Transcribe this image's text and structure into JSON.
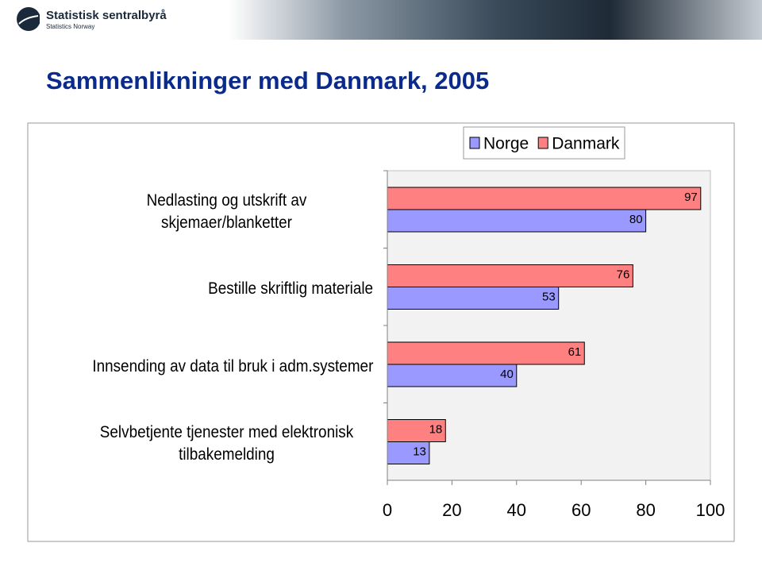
{
  "header": {
    "logo": "Statistisk sentralbyrå",
    "logo_sub": "Statistics Norway"
  },
  "chart_data": {
    "type": "hbar",
    "title": "Sammenlikninger med Danmark, 2005",
    "categories": [
      "Nedlasting og utskrift av skjemaer/blanketter",
      "Bestille skriftlig materiale",
      "Innsending av data til bruk i adm.systemer",
      "Selvbetjente tjenester med elektronisk tilbakemelding"
    ],
    "series": [
      {
        "name": "Norge",
        "color": "#9999ff",
        "values": [
          80,
          53,
          40,
          13
        ]
      },
      {
        "name": "Danmark",
        "color": "#ff8080",
        "values": [
          97,
          76,
          61,
          18
        ]
      }
    ],
    "xlim": [
      0,
      100
    ],
    "xticks": [
      0,
      20,
      40,
      60,
      80,
      100
    ],
    "legend": "top-right"
  }
}
